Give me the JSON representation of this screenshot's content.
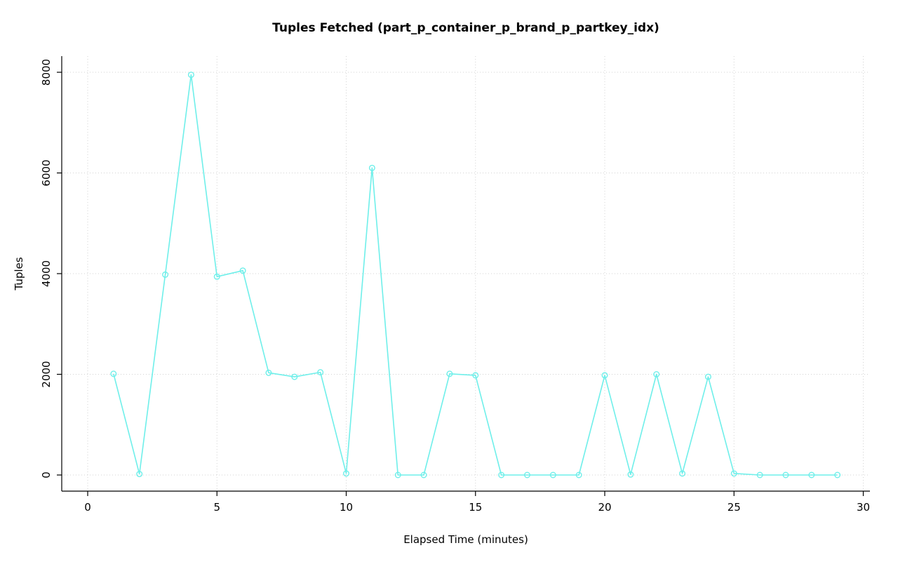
{
  "chart_data": {
    "type": "line",
    "title": "Tuples Fetched (part_p_container_p_brand_p_partkey_idx)",
    "xlabel": "Elapsed Time (minutes)",
    "ylabel": "Tuples",
    "x": [
      1,
      2,
      3,
      4,
      5,
      6,
      7,
      8,
      9,
      10,
      11,
      12,
      13,
      14,
      15,
      16,
      17,
      18,
      19,
      20,
      21,
      22,
      23,
      24,
      25,
      26,
      27,
      28,
      29
    ],
    "values": [
      2010,
      20,
      3980,
      7950,
      3940,
      4060,
      2030,
      1950,
      2040,
      30,
      6100,
      0,
      0,
      2010,
      1980,
      0,
      0,
      0,
      0,
      1980,
      10,
      2000,
      30,
      1950,
      30,
      0,
      0,
      0,
      0
    ],
    "xlim": [
      0,
      30
    ],
    "ylim": [
      0,
      8000
    ],
    "xticks": [
      0,
      5,
      10,
      15,
      20,
      25,
      30
    ],
    "yticks": [
      0,
      2000,
      4000,
      6000,
      8000
    ],
    "grid": true,
    "grid_style": "dotted",
    "legend_position": "none",
    "marker": "open-circle",
    "colors": {
      "series": "#6FEFEA",
      "grid": "#D3D3D3",
      "axis": "#000000",
      "background": "#FFFFFF"
    }
  }
}
